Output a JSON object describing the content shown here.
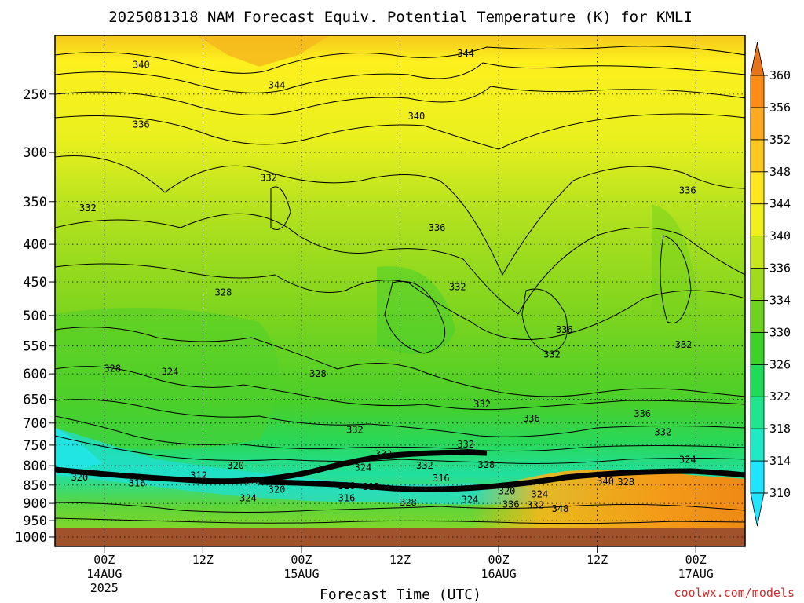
{
  "chart_data": {
    "type": "heatmap",
    "title": "2025081318 NAM Forecast Equiv. Potential Temperature (K) for KMLI",
    "xlabel": "Forecast Time (UTC)",
    "ylabel": "",
    "y_scale": "log",
    "y_inverted": true,
    "ylim": [
      1030,
      208
    ],
    "y_ticks": [
      250,
      300,
      350,
      400,
      450,
      500,
      550,
      600,
      650,
      700,
      750,
      800,
      850,
      900,
      950,
      1000
    ],
    "y_tick_labels": [
      "250",
      "300",
      "350",
      "400",
      "450",
      "500",
      "550",
      "600",
      "650",
      "700",
      "750",
      "800",
      "850",
      "900",
      "950",
      "1000"
    ],
    "x_ticks_hours": [
      6,
      18,
      30,
      42,
      54,
      66,
      78
    ],
    "x_range_hours": [
      0,
      84
    ],
    "x_tick_labels": [
      {
        "line1": "00Z",
        "line2": "14AUG",
        "line3": "2025"
      },
      {
        "line1": "12Z",
        "line2": "",
        "line3": ""
      },
      {
        "line1": "00Z",
        "line2": "15AUG",
        "line3": ""
      },
      {
        "line1": "12Z",
        "line2": "",
        "line3": ""
      },
      {
        "line1": "00Z",
        "line2": "16AUG",
        "line3": ""
      },
      {
        "line1": "12Z",
        "line2": "",
        "line3": ""
      },
      {
        "line1": "00Z",
        "line2": "17AUG",
        "line3": ""
      }
    ],
    "grid": true,
    "colorbar": {
      "units": "K",
      "ticks": [
        310,
        314,
        318,
        322,
        326,
        330,
        334,
        336,
        340,
        344,
        348,
        352,
        356,
        360
      ],
      "colors": [
        "#1ee6ff",
        "#1eeac6",
        "#1ee68c",
        "#1edc5a",
        "#3cd22a",
        "#6ed21e",
        "#a0dc1e",
        "#c8e61e",
        "#f0f01e",
        "#ffe61e",
        "#ffc81e",
        "#ffaa1e",
        "#ff8c14"
      ]
    },
    "contour_labels": [
      {
        "text": "340",
        "hour": 10.5,
        "p": 228
      },
      {
        "text": "344",
        "hour": 50,
        "p": 220
      },
      {
        "text": "344",
        "hour": 27,
        "p": 243
      },
      {
        "text": "340",
        "hour": 44,
        "p": 268
      },
      {
        "text": "336",
        "hour": 10.5,
        "p": 275
      },
      {
        "text": "332",
        "hour": 26,
        "p": 325
      },
      {
        "text": "332",
        "hour": 4,
        "p": 357
      },
      {
        "text": "336",
        "hour": 46.5,
        "p": 380
      },
      {
        "text": "336",
        "hour": 77,
        "p": 338
      },
      {
        "text": "328",
        "hour": 20.5,
        "p": 465
      },
      {
        "text": "332",
        "hour": 49,
        "p": 457
      },
      {
        "text": "336",
        "hour": 62,
        "p": 523
      },
      {
        "text": "332",
        "hour": 60.5,
        "p": 565
      },
      {
        "text": "332",
        "hour": 76.5,
        "p": 548
      },
      {
        "text": "328",
        "hour": 7,
        "p": 590
      },
      {
        "text": "324",
        "hour": 14,
        "p": 596
      },
      {
        "text": "328",
        "hour": 32,
        "p": 600
      },
      {
        "text": "332",
        "hour": 52,
        "p": 660
      },
      {
        "text": "336",
        "hour": 58,
        "p": 690
      },
      {
        "text": "336",
        "hour": 71.5,
        "p": 680
      },
      {
        "text": "332",
        "hour": 36.5,
        "p": 715
      },
      {
        "text": "332",
        "hour": 74,
        "p": 720
      },
      {
        "text": "332",
        "hour": 50,
        "p": 748
      },
      {
        "text": "332",
        "hour": 40,
        "p": 772
      },
      {
        "text": "324",
        "hour": 77,
        "p": 785
      },
      {
        "text": "320",
        "hour": 22,
        "p": 800
      },
      {
        "text": "324",
        "hour": 37.5,
        "p": 805
      },
      {
        "text": "332",
        "hour": 45,
        "p": 800
      },
      {
        "text": "328",
        "hour": 52.5,
        "p": 798
      },
      {
        "text": "312",
        "hour": 17.5,
        "p": 825
      },
      {
        "text": "320",
        "hour": 3,
        "p": 830
      },
      {
        "text": "316",
        "hour": 24,
        "p": 840
      },
      {
        "text": "316",
        "hour": 47,
        "p": 832
      },
      {
        "text": "340",
        "hour": 67,
        "p": 840
      },
      {
        "text": "328",
        "hour": 69.5,
        "p": 842
      },
      {
        "text": "316",
        "hour": 10,
        "p": 845
      },
      {
        "text": "316",
        "hour": 35.5,
        "p": 852
      },
      {
        "text": "312",
        "hour": 38.5,
        "p": 855
      },
      {
        "text": "320",
        "hour": 27,
        "p": 862
      },
      {
        "text": "320",
        "hour": 55,
        "p": 866
      },
      {
        "text": "324",
        "hour": 23.5,
        "p": 885
      },
      {
        "text": "316",
        "hour": 35.5,
        "p": 885
      },
      {
        "text": "324",
        "hour": 59,
        "p": 875
      },
      {
        "text": "328",
        "hour": 43,
        "p": 898
      },
      {
        "text": "324",
        "hour": 50.5,
        "p": 890
      },
      {
        "text": "336",
        "hour": 55.5,
        "p": 903
      },
      {
        "text": "332",
        "hour": 58.5,
        "p": 905
      },
      {
        "text": "348",
        "hour": 61.5,
        "p": 915
      }
    ]
  },
  "credit": "coolwx.com/models"
}
